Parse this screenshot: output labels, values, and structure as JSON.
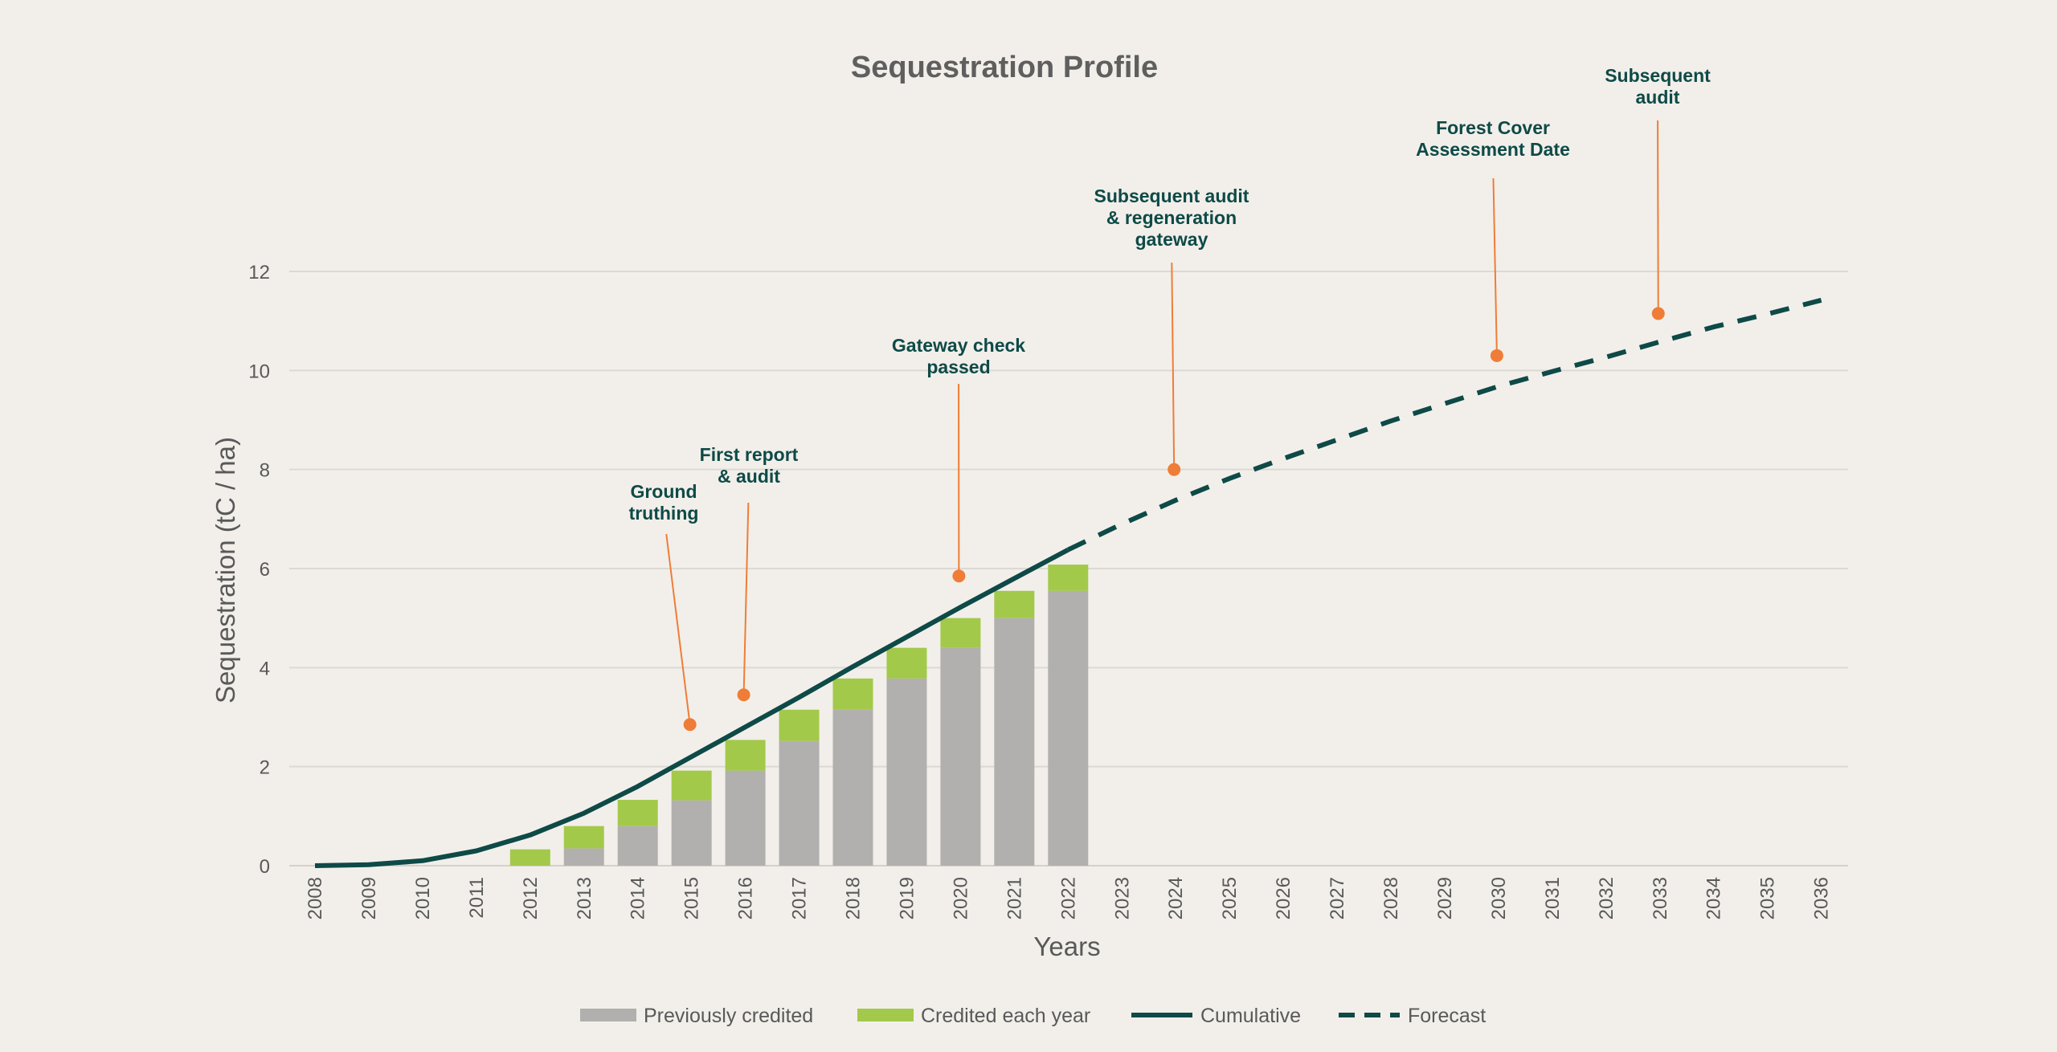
{
  "colors": {
    "background": "#f2efea",
    "previously_credited": "#b2b0ae",
    "credited_each_year": "#a3c94a",
    "cumulative": "#0e4a47",
    "annotation": "#ef7d37",
    "annotation_text": "#0e4a47",
    "grid": "#dcd9d4"
  },
  "chart_data": {
    "type": "bar",
    "title": "Sequestration Profile",
    "xlabel": "Years",
    "ylabel": "Sequestration (tC / ha)",
    "ylim": [
      0,
      12
    ],
    "yticks": [
      0,
      2,
      4,
      6,
      8,
      10,
      12
    ],
    "grid": true,
    "legend_position": "bottom",
    "categories": [
      "2008",
      "2009",
      "2010",
      "2011",
      "2012",
      "2013",
      "2014",
      "2015",
      "2016",
      "2017",
      "2018",
      "2019",
      "2020",
      "2021",
      "2022",
      "2023",
      "2024",
      "2025",
      "2026",
      "2027",
      "2028",
      "2029",
      "2030",
      "2031",
      "2032",
      "2033",
      "2034",
      "2035",
      "2036"
    ],
    "series": [
      {
        "name": "Previously credited",
        "type": "bar",
        "stacked": true,
        "color": "#b2b0ae",
        "values": [
          null,
          null,
          null,
          null,
          0,
          0.35,
          0.8,
          1.32,
          1.92,
          2.52,
          3.15,
          3.78,
          4.4,
          5.0,
          5.55,
          null,
          null,
          null,
          null,
          null,
          null,
          null,
          null,
          null,
          null,
          null,
          null,
          null,
          null
        ]
      },
      {
        "name": "Credited each year",
        "type": "bar",
        "stacked": true,
        "color": "#a3c94a",
        "values": [
          null,
          null,
          null,
          null,
          0.33,
          0.45,
          0.53,
          0.6,
          0.62,
          0.63,
          0.63,
          0.62,
          0.6,
          0.55,
          0.53,
          null,
          null,
          null,
          null,
          null,
          null,
          null,
          null,
          null,
          null,
          null,
          null,
          null,
          null
        ]
      },
      {
        "name": "Cumulative",
        "type": "line",
        "style": "solid",
        "color": "#0e4a47",
        "values": [
          0,
          0.02,
          0.1,
          0.3,
          0.62,
          1.06,
          1.6,
          2.2,
          2.8,
          3.4,
          4.02,
          4.62,
          5.22,
          5.8,
          6.38,
          null,
          null,
          null,
          null,
          null,
          null,
          null,
          null,
          null,
          null,
          null,
          null,
          null,
          null
        ]
      },
      {
        "name": "Forecast",
        "type": "line",
        "style": "dashed",
        "color": "#0e4a47",
        "values": [
          null,
          null,
          null,
          null,
          null,
          null,
          null,
          null,
          null,
          null,
          null,
          null,
          null,
          null,
          6.38,
          6.9,
          7.38,
          7.82,
          8.22,
          8.6,
          8.98,
          9.33,
          9.68,
          9.98,
          10.27,
          10.58,
          10.88,
          11.14,
          11.42
        ]
      }
    ],
    "annotations": [
      {
        "label": [
          "Ground",
          "truthing"
        ],
        "x": "2015",
        "y": 2.85
      },
      {
        "label": [
          "First report",
          "& audit"
        ],
        "x": "2016",
        "y": 3.45
      },
      {
        "label": [
          "Gateway check",
          "passed"
        ],
        "x": "2020",
        "y": 5.85
      },
      {
        "label": [
          "Subsequent audit",
          "& regeneration",
          "gateway"
        ],
        "x": "2024",
        "y": 8.0
      },
      {
        "label": [
          "Forest Cover",
          "Assessment Date"
        ],
        "x": "2030",
        "y": 10.3
      },
      {
        "label": [
          "Subsequent",
          "audit"
        ],
        "x": "2033",
        "y": 11.15
      }
    ]
  }
}
